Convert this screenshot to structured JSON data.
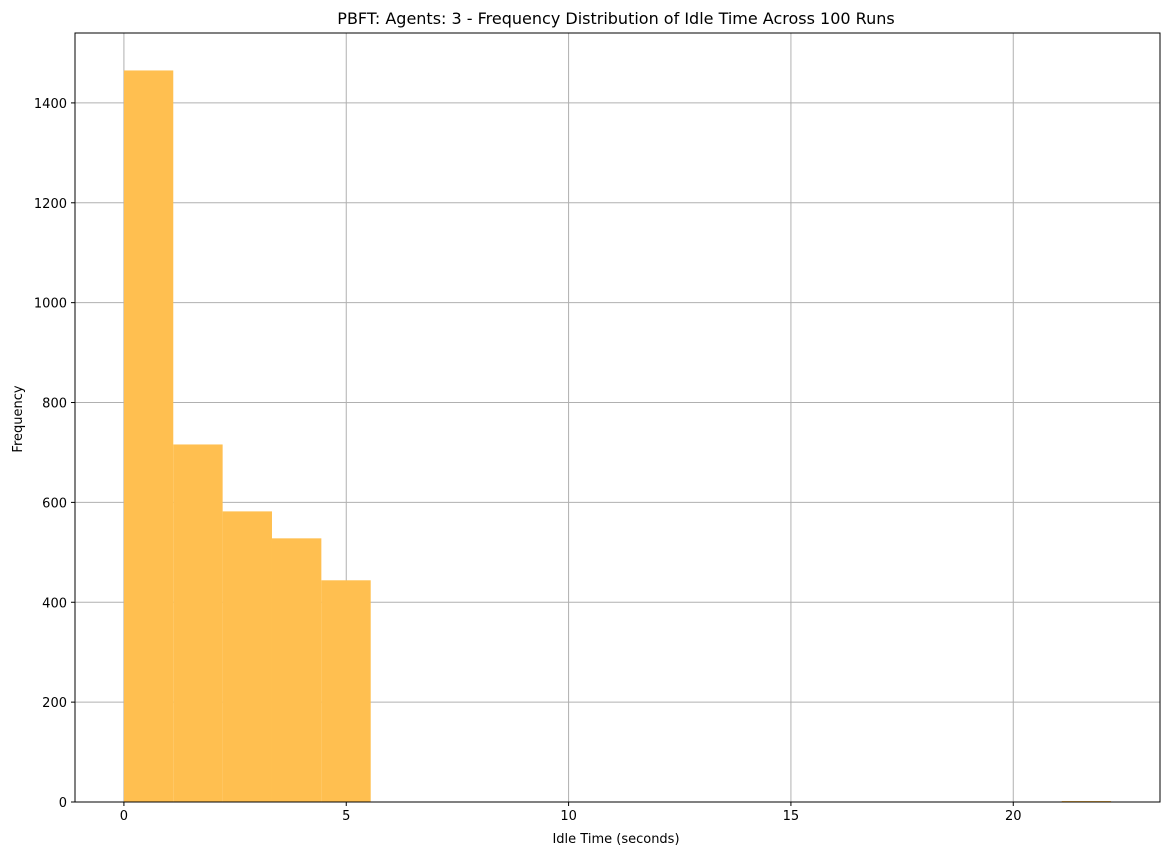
{
  "chart_data": {
    "type": "bar",
    "title": "PBFT: Agents: 3 - Frequency Distribution of Idle Time Across 100 Runs",
    "xlabel": "Idle Time (seconds)",
    "ylabel": "Frequency",
    "xlim": [
      -1.1,
      23.3
    ],
    "ylim": [
      0,
      1540
    ],
    "xticks": [
      0,
      5,
      10,
      15,
      20
    ],
    "yticks": [
      0,
      200,
      400,
      600,
      800,
      1000,
      1200,
      1400
    ],
    "grid": true,
    "bar_color": "#FFBF50",
    "bins": [
      {
        "x0": 0.0,
        "x1": 1.11,
        "count": 1465
      },
      {
        "x0": 1.11,
        "x1": 2.22,
        "count": 716
      },
      {
        "x0": 2.22,
        "x1": 3.33,
        "count": 582
      },
      {
        "x0": 3.33,
        "x1": 4.44,
        "count": 528
      },
      {
        "x0": 4.44,
        "x1": 5.55,
        "count": 444
      },
      {
        "x0": 5.55,
        "x1": 6.66,
        "count": 0
      },
      {
        "x0": 6.66,
        "x1": 7.77,
        "count": 0
      },
      {
        "x0": 7.77,
        "x1": 8.88,
        "count": 0
      },
      {
        "x0": 8.88,
        "x1": 9.99,
        "count": 0
      },
      {
        "x0": 9.99,
        "x1": 11.1,
        "count": 0
      },
      {
        "x0": 11.1,
        "x1": 12.21,
        "count": 0
      },
      {
        "x0": 12.21,
        "x1": 13.32,
        "count": 0
      },
      {
        "x0": 13.32,
        "x1": 14.43,
        "count": 0
      },
      {
        "x0": 14.43,
        "x1": 15.54,
        "count": 0
      },
      {
        "x0": 15.54,
        "x1": 16.65,
        "count": 0
      },
      {
        "x0": 16.65,
        "x1": 17.76,
        "count": 0
      },
      {
        "x0": 17.76,
        "x1": 18.87,
        "count": 0
      },
      {
        "x0": 18.87,
        "x1": 19.98,
        "count": 0
      },
      {
        "x0": 19.98,
        "x1": 21.09,
        "count": 0
      },
      {
        "x0": 21.09,
        "x1": 22.2,
        "count": 1
      }
    ]
  }
}
